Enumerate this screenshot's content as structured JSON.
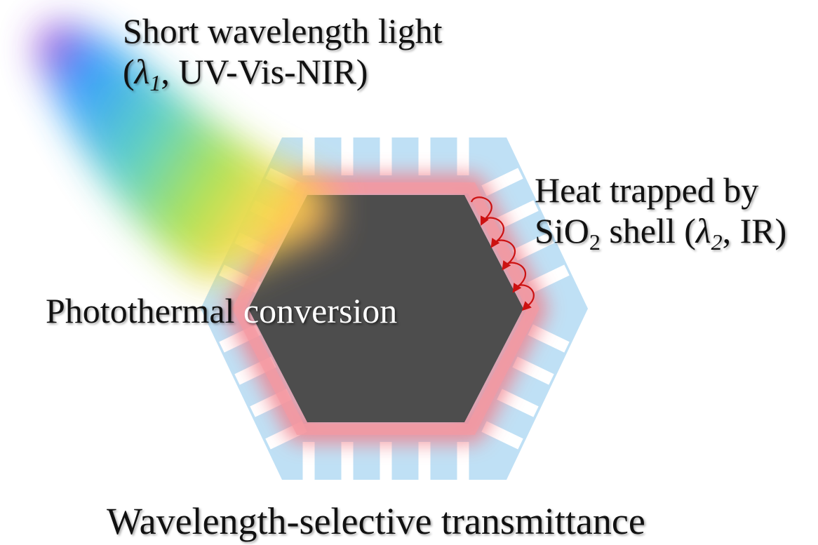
{
  "labels": {
    "short_line1": "Short wavelength light",
    "short_open": "(",
    "short_lambda": "λ",
    "short_sub": "1",
    "short_rest": ", UV-Vis-NIR)",
    "heat_line1": "Heat trapped by",
    "heat_si": "SiO",
    "heat_o_sub": "2",
    "heat_mid": " shell (",
    "heat_lambda": "λ",
    "heat_lambda_sub": "2",
    "heat_rest": ", IR)",
    "photo_part1": "Photothermal",
    "photo_part2": " conversion",
    "bottom": "Wavelength-selective transmittance"
  },
  "colors": {
    "core": "#4d4d4d",
    "glow": "#f07f8a",
    "shell": "#bfe0f5",
    "heat_arrows": "#cc1111",
    "light_beam": [
      "#8a3fd6",
      "#2f9bff",
      "#4fd0b0",
      "#9be24a",
      "#ffd94a",
      "#ffb05a"
    ]
  },
  "icons": {
    "heat_arrow": "curved-arrow-icon"
  }
}
